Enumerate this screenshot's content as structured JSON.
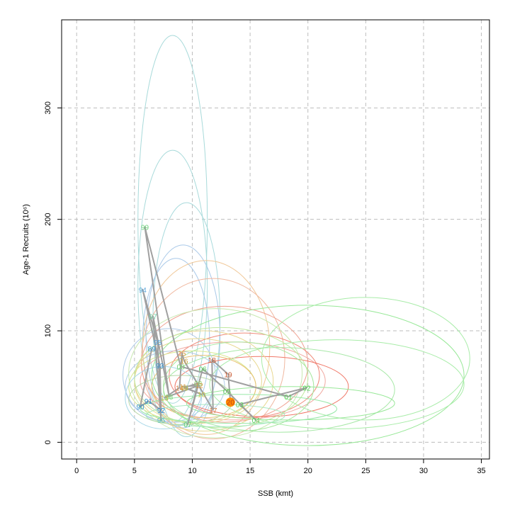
{
  "chart_data": {
    "type": "scatter",
    "title": "",
    "xlabel": "SSB (kmt)",
    "ylabel": "Age-1 Recruits (10⁶)",
    "xlim": [
      -1.3,
      35.7
    ],
    "ylim": [
      -15,
      379
    ],
    "x_ticks": [
      0,
      5,
      10,
      15,
      20,
      25,
      30,
      35
    ],
    "y_ticks": [
      0,
      100,
      200,
      300
    ],
    "grid": true,
    "highlight_label": "20",
    "points": [
      {
        "label": "89",
        "x": 6.5,
        "y": 84,
        "color": "#2f8fd0"
      },
      {
        "label": "90",
        "x": 5.5,
        "y": 32,
        "color": "#2f8fd0"
      },
      {
        "label": "91",
        "x": 6.2,
        "y": 37,
        "color": "#2f8fd0"
      },
      {
        "label": "92",
        "x": 7.3,
        "y": 29,
        "color": "#2f8fd0"
      },
      {
        "label": "93",
        "x": 7.2,
        "y": 69,
        "color": "#2f8fd0"
      },
      {
        "label": "94",
        "x": 5.7,
        "y": 137,
        "color": "#5fa8dc"
      },
      {
        "label": "95",
        "x": 7.0,
        "y": 90,
        "color": "#4d9ed8"
      },
      {
        "label": "96",
        "x": 7.3,
        "y": 20,
        "color": "#5cc0b0"
      },
      {
        "label": "97",
        "x": 6.6,
        "y": 113,
        "color": "#6cd2a8"
      },
      {
        "label": "98",
        "x": 8.0,
        "y": 41,
        "color": "#7cd27a"
      },
      {
        "label": "99",
        "x": 5.9,
        "y": 193,
        "color": "#6cd27a"
      },
      {
        "label": "00",
        "x": 9.0,
        "y": 68,
        "color": "#76d36e"
      },
      {
        "label": "01",
        "x": 18.3,
        "y": 41,
        "color": "#58cc58"
      },
      {
        "label": "02",
        "x": 19.9,
        "y": 49,
        "color": "#58cc58"
      },
      {
        "label": "03",
        "x": 14.1,
        "y": 34,
        "color": "#58cc58"
      },
      {
        "label": "04",
        "x": 15.5,
        "y": 20,
        "color": "#58cc58"
      },
      {
        "label": "05",
        "x": 13.0,
        "y": 46,
        "color": "#62cc58"
      },
      {
        "label": "06",
        "x": 10.9,
        "y": 66,
        "color": "#5ccc60"
      },
      {
        "label": "07",
        "x": 9.6,
        "y": 16,
        "color": "#5ccc78"
      },
      {
        "label": "08",
        "x": 10.5,
        "y": 53,
        "color": "#8cc860"
      },
      {
        "label": "09",
        "x": 9.3,
        "y": 49,
        "color": "#b8c848"
      },
      {
        "label": "10",
        "x": 10.8,
        "y": 43,
        "color": "#c8c048"
      },
      {
        "label": "11",
        "x": 9.2,
        "y": 50,
        "color": "#d8a048"
      },
      {
        "label": "12",
        "x": 10.6,
        "y": 51,
        "color": "#d09848"
      },
      {
        "label": "13",
        "x": 7.6,
        "y": 40,
        "color": "#d8b050"
      },
      {
        "label": "14",
        "x": 8.9,
        "y": 49,
        "color": "#d88848"
      },
      {
        "label": "15",
        "x": 9.1,
        "y": 80,
        "color": "#d89840"
      },
      {
        "label": "16",
        "x": 9.3,
        "y": 73,
        "color": "#c8a040"
      },
      {
        "label": "17",
        "x": 11.8,
        "y": 29,
        "color": "#c87840"
      },
      {
        "label": "18",
        "x": 11.7,
        "y": 74,
        "color": "#c85830"
      },
      {
        "label": "19",
        "x": 13.1,
        "y": 61,
        "color": "#c85830"
      },
      {
        "label": "20",
        "x": 13.3,
        "y": 36,
        "color": "#c84020"
      }
    ],
    "ellipses": [
      {
        "cx": 8.3,
        "cy": 200,
        "rx": 3.0,
        "ry": 165,
        "color": "#a8dada"
      },
      {
        "cx": 8.3,
        "cy": 140,
        "rx": 3.0,
        "ry": 122,
        "color": "#a8dada"
      },
      {
        "cx": 9.5,
        "cy": 110,
        "rx": 2.9,
        "ry": 105,
        "color": "#a8dadc"
      },
      {
        "cx": 9.2,
        "cy": 95,
        "rx": 3.2,
        "ry": 82,
        "color": "#a8c8e8"
      },
      {
        "cx": 8.6,
        "cy": 90,
        "rx": 2.9,
        "ry": 75,
        "color": "#a8c8e8"
      },
      {
        "cx": 8.0,
        "cy": 60,
        "rx": 4.0,
        "ry": 42,
        "color": "#b0cce8"
      },
      {
        "cx": 8.5,
        "cy": 50,
        "rx": 4.3,
        "ry": 32,
        "color": "#b0cce8"
      },
      {
        "cx": 11.2,
        "cy": 85,
        "rx": 5.5,
        "ry": 78,
        "color": "#f0c898"
      },
      {
        "cx": 11.8,
        "cy": 75,
        "rx": 6.2,
        "ry": 72,
        "color": "#f0b8a0"
      },
      {
        "cx": 12.8,
        "cy": 70,
        "rx": 7.2,
        "ry": 52,
        "color": "#f0a090"
      },
      {
        "cx": 14.5,
        "cy": 60,
        "rx": 6.5,
        "ry": 38,
        "color": "#f08a7a"
      },
      {
        "cx": 13.5,
        "cy": 55,
        "rx": 8.0,
        "ry": 35,
        "color": "#f0a8a0"
      },
      {
        "cx": 16.0,
        "cy": 50,
        "rx": 7.5,
        "ry": 27,
        "color": "#f07868"
      },
      {
        "cx": 10.5,
        "cy": 55,
        "rx": 5.5,
        "ry": 38,
        "color": "#e8d890"
      },
      {
        "cx": 11.0,
        "cy": 55,
        "rx": 6.0,
        "ry": 45,
        "color": "#e8d890"
      },
      {
        "cx": 10.0,
        "cy": 50,
        "rx": 5.5,
        "ry": 32,
        "color": "#d8e890"
      },
      {
        "cx": 11.0,
        "cy": 50,
        "rx": 4.5,
        "ry": 28,
        "color": "#e8c070"
      },
      {
        "cx": 12.5,
        "cy": 58,
        "rx": 7.5,
        "ry": 45,
        "color": "#c0e8a0"
      },
      {
        "cx": 12.0,
        "cy": 62,
        "rx": 7.5,
        "ry": 58,
        "color": "#c8e8b0"
      },
      {
        "cx": 14.0,
        "cy": 50,
        "rx": 6.5,
        "ry": 40,
        "color": "#a8e8a0"
      },
      {
        "cx": 17.5,
        "cy": 47,
        "rx": 10.0,
        "ry": 38,
        "color": "#a8e8a8"
      },
      {
        "cx": 20.0,
        "cy": 60,
        "rx": 13.5,
        "ry": 63,
        "color": "#98e898"
      },
      {
        "cx": 25.0,
        "cy": 75,
        "rx": 9.0,
        "ry": 55,
        "color": "#a8eca8"
      },
      {
        "cx": 22.5,
        "cy": 52,
        "rx": 11.0,
        "ry": 40,
        "color": "#a8eca8"
      },
      {
        "cx": 18.5,
        "cy": 35,
        "rx": 9.0,
        "ry": 15,
        "color": "#98e898"
      },
      {
        "cx": 14.0,
        "cy": 30,
        "rx": 8.5,
        "ry": 13,
        "color": "#98e8a8"
      },
      {
        "cx": 12.0,
        "cy": 24,
        "rx": 6.0,
        "ry": 10,
        "color": "#a8e8c0"
      },
      {
        "cx": 7.5,
        "cy": 40,
        "rx": 3.3,
        "ry": 28,
        "color": "#a8d8e8"
      },
      {
        "cx": 9.0,
        "cy": 38,
        "rx": 4.5,
        "ry": 22,
        "color": "#b8d8a8"
      }
    ]
  }
}
